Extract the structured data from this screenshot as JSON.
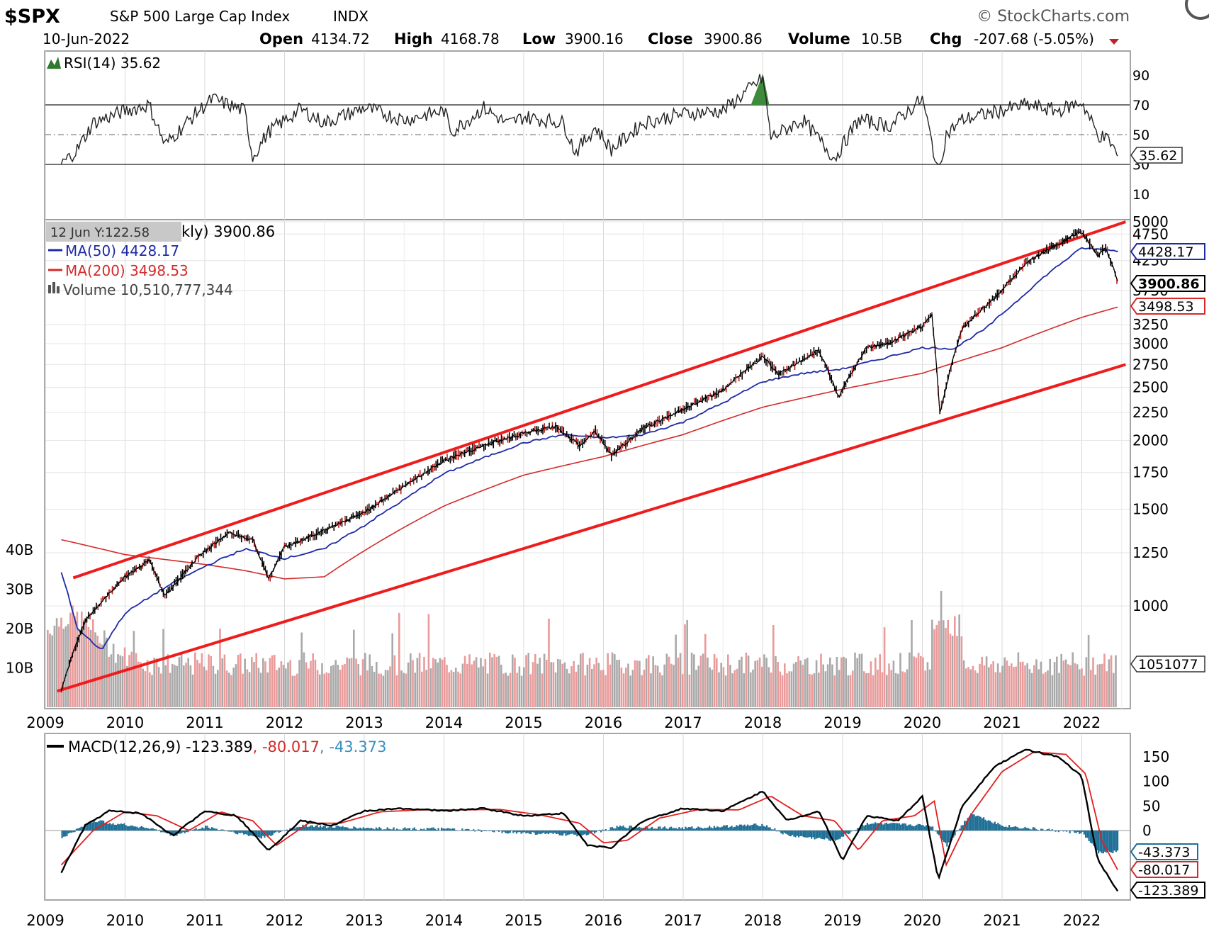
{
  "header": {
    "symbol": "$SPX",
    "name": "S&P 500 Large Cap Index",
    "exchange": "INDX",
    "date": "10-Jun-2022",
    "open_label": "Open",
    "open": "4134.72",
    "high_label": "High",
    "high": "4168.78",
    "low_label": "Low",
    "low": "3900.16",
    "close_label": "Close",
    "close": "3900.86",
    "volume_label": "Volume",
    "volume": "10.5B",
    "chg_label": "Chg",
    "chg": "-207.68 (-5.05%)",
    "copyright": "© StockCharts.com"
  },
  "colors": {
    "price": "#000000",
    "ma50": "#1f2aa5",
    "ma200": "#d42a2a",
    "channel": "#ee1c1c",
    "rsi_fill_overbought": "#3d8a3d",
    "volume_up": "#9a9a9a",
    "volume_down": "#e58a8a",
    "macd_line": "#000000",
    "signal_line": "#e02020",
    "histogram": "#1f6f96",
    "grid": "#d8d8d8"
  },
  "rsi_panel": {
    "legend": "RSI(14) 35.62",
    "value_tag": "35.62",
    "ticks": [
      "90",
      "70",
      "50",
      "30",
      "10"
    ]
  },
  "price_panel": {
    "tooltip": "12 Jun Y:122.58",
    "legend_title": "kly) 3900.86",
    "ma50_legend": "MA(50) 4428.17",
    "ma200_legend": "MA(200) 3498.53",
    "volume_legend": "Volume 10,510,777,344",
    "tags": {
      "ma50": "4428.17",
      "close": "3900.86",
      "ma200": "3498.53",
      "volume": "1051077"
    },
    "y_ticks": [
      "5000",
      "4750",
      "4250",
      "3750",
      "3250",
      "3000",
      "2750",
      "2500",
      "2250",
      "2000",
      "1750",
      "1500",
      "1250",
      "1000"
    ],
    "volume_ticks": [
      "40B",
      "30B",
      "20B",
      "10B"
    ]
  },
  "macd_panel": {
    "legend_prefix": "MACD(12,26,9) -123.389",
    "legend_signal": ", -80.017",
    "legend_hist": ", -43.373",
    "tags": {
      "hist": "-43.373",
      "signal": "-80.017",
      "macd": "-123.389"
    },
    "ticks": [
      "150",
      "100",
      "50",
      "0"
    ]
  },
  "x_axis": {
    "labels": [
      "2009",
      "2010",
      "2011",
      "2012",
      "2013",
      "2014",
      "2015",
      "2016",
      "2017",
      "2018",
      "2019",
      "2020",
      "2021",
      "2022"
    ]
  },
  "chart_data": {
    "type": "line",
    "title": "$SPX S&P 500 Large Cap Index INDX",
    "x_range": [
      "2009-03",
      "2022-06"
    ],
    "price_axis_scale": "log",
    "price_ylim": [
      680,
      5000
    ],
    "series": [
      {
        "name": "SPX",
        "x": [
          2009.2,
          2009.5,
          2010.0,
          2010.3,
          2010.5,
          2010.9,
          2011.3,
          2011.6,
          2011.8,
          2012.0,
          2012.5,
          2013.0,
          2013.5,
          2014.0,
          2014.5,
          2015.0,
          2015.4,
          2015.7,
          2015.9,
          2016.1,
          2016.5,
          2017.0,
          2017.5,
          2018.0,
          2018.2,
          2018.7,
          2018.95,
          2019.3,
          2019.6,
          2020.0,
          2020.12,
          2020.22,
          2020.5,
          2020.9,
          2021.3,
          2021.6,
          2021.99,
          2022.2,
          2022.3,
          2022.45
        ],
        "y": [
          700,
          940,
          1130,
          1210,
          1040,
          1220,
          1360,
          1320,
          1120,
          1280,
          1370,
          1480,
          1650,
          1840,
          1960,
          2060,
          2120,
          1960,
          2080,
          1880,
          2100,
          2280,
          2470,
          2840,
          2640,
          2920,
          2400,
          2950,
          3010,
          3230,
          3380,
          2240,
          3200,
          3620,
          4200,
          4480,
          4800,
          4350,
          4490,
          3900
        ]
      },
      {
        "name": "MA(50)",
        "x": [
          2009.2,
          2009.4,
          2009.7,
          2010.0,
          2010.5,
          2011.0,
          2011.5,
          2012.0,
          2012.5,
          2013.0,
          2013.5,
          2014.0,
          2014.5,
          2015.0,
          2015.5,
          2016.0,
          2016.5,
          2017.0,
          2017.5,
          2018.0,
          2018.5,
          2019.0,
          2019.5,
          2020.0,
          2020.4,
          2020.8,
          2021.2,
          2021.6,
          2022.0,
          2022.45
        ],
        "y": [
          1150,
          910,
          830,
          970,
          1080,
          1180,
          1270,
          1220,
          1270,
          1400,
          1560,
          1740,
          1860,
          1980,
          2050,
          2020,
          2050,
          2160,
          2340,
          2560,
          2650,
          2700,
          2820,
          2950,
          2940,
          3200,
          3600,
          4050,
          4480,
          4428
        ]
      },
      {
        "name": "MA(200)",
        "x": [
          2009.2,
          2010.0,
          2011.0,
          2011.5,
          2012.0,
          2012.5,
          2013.0,
          2014.0,
          2015.0,
          2016.0,
          2017.0,
          2018.0,
          2019.0,
          2020.0,
          2021.0,
          2022.0,
          2022.45
        ],
        "y": [
          1320,
          1240,
          1190,
          1160,
          1120,
          1130,
          1260,
          1520,
          1730,
          1870,
          2050,
          2300,
          2480,
          2650,
          2950,
          3350,
          3498
        ]
      },
      {
        "name": "Channel Upper",
        "x": [
          2009.35,
          2022.55
        ],
        "y": [
          1125,
          5000
        ]
      },
      {
        "name": "Channel Lower",
        "x": [
          2009.15,
          2022.55
        ],
        "y": [
          700,
          2750
        ]
      },
      {
        "name": "RSI(14)",
        "x": [
          2009.2,
          2009.4,
          2009.6,
          2010.0,
          2010.3,
          2010.5,
          2010.9,
          2011.1,
          2011.5,
          2011.6,
          2011.8,
          2012.2,
          2012.5,
          2013.0,
          2013.5,
          2014.0,
          2014.1,
          2014.5,
          2014.8,
          2015.0,
          2015.5,
          2015.65,
          2015.9,
          2016.1,
          2016.5,
          2017.0,
          2017.5,
          2018.0,
          2018.1,
          2018.5,
          2018.9,
          2019.2,
          2019.6,
          2020.0,
          2020.2,
          2020.3,
          2020.5,
          2020.9,
          2021.3,
          2021.7,
          2022.0,
          2022.2,
          2022.35,
          2022.45
        ],
        "y": [
          30,
          40,
          58,
          66,
          70,
          43,
          65,
          74,
          66,
          35,
          52,
          67,
          58,
          68,
          60,
          66,
          52,
          68,
          57,
          62,
          58,
          38,
          55,
          40,
          58,
          64,
          66,
          88,
          48,
          60,
          34,
          60,
          56,
          74,
          25,
          50,
          60,
          65,
          70,
          66,
          72,
          50,
          46,
          35.62
        ]
      },
      {
        "name": "MACD(12,26,9)",
        "x": [
          2009.2,
          2009.5,
          2009.8,
          2010.2,
          2010.6,
          2011.0,
          2011.4,
          2011.8,
          2012.2,
          2012.6,
          2013.0,
          2013.5,
          2014.0,
          2014.5,
          2015.0,
          2015.5,
          2015.8,
          2016.1,
          2016.5,
          2017.0,
          2017.5,
          2018.0,
          2018.3,
          2018.7,
          2019.0,
          2019.3,
          2019.7,
          2020.0,
          2020.2,
          2020.5,
          2020.9,
          2021.3,
          2021.7,
          2022.0,
          2022.2,
          2022.45
        ],
        "y": [
          -85,
          10,
          40,
          35,
          -10,
          40,
          30,
          -40,
          20,
          10,
          40,
          45,
          40,
          45,
          30,
          35,
          -30,
          -35,
          20,
          45,
          40,
          80,
          20,
          40,
          -60,
          30,
          20,
          70,
          -100,
          50,
          130,
          165,
          150,
          110,
          -60,
          -123.389
        ]
      },
      {
        "name": "Signal",
        "x": [
          2009.2,
          2009.6,
          2010.0,
          2010.4,
          2010.8,
          2011.2,
          2011.6,
          2011.9,
          2012.3,
          2012.7,
          2013.2,
          2013.7,
          2014.2,
          2014.7,
          2015.2,
          2015.7,
          2016.0,
          2016.3,
          2016.7,
          2017.2,
          2017.7,
          2018.1,
          2018.5,
          2018.9,
          2019.2,
          2019.5,
          2019.9,
          2020.15,
          2020.3,
          2020.6,
          2021.0,
          2021.4,
          2021.8,
          2022.05,
          2022.25,
          2022.45
        ],
        "y": [
          -70,
          0,
          38,
          30,
          0,
          38,
          20,
          -30,
          15,
          15,
          38,
          42,
          42,
          43,
          32,
          15,
          -25,
          -20,
          25,
          43,
          42,
          70,
          30,
          20,
          -40,
          20,
          30,
          60,
          -70,
          30,
          120,
          160,
          155,
          115,
          -20,
          -80.017
        ]
      },
      {
        "name": "Histogram",
        "x": [
          2009.2,
          2009.6,
          2010.3,
          2010.6,
          2011.0,
          2011.7,
          2012.2,
          2013.0,
          2014.0,
          2015.0,
          2015.7,
          2016.2,
          2017.0,
          2018.0,
          2018.3,
          2018.9,
          2019.3,
          2020.1,
          2020.3,
          2020.6,
          2021.0,
          2021.5,
          2022.0,
          2022.2,
          2022.45
        ],
        "y": [
          -15,
          20,
          5,
          -10,
          8,
          -15,
          10,
          5,
          3,
          -5,
          -10,
          8,
          5,
          12,
          -10,
          -20,
          15,
          10,
          -30,
          35,
          10,
          2,
          -5,
          -45,
          -43.373
        ]
      }
    ]
  }
}
